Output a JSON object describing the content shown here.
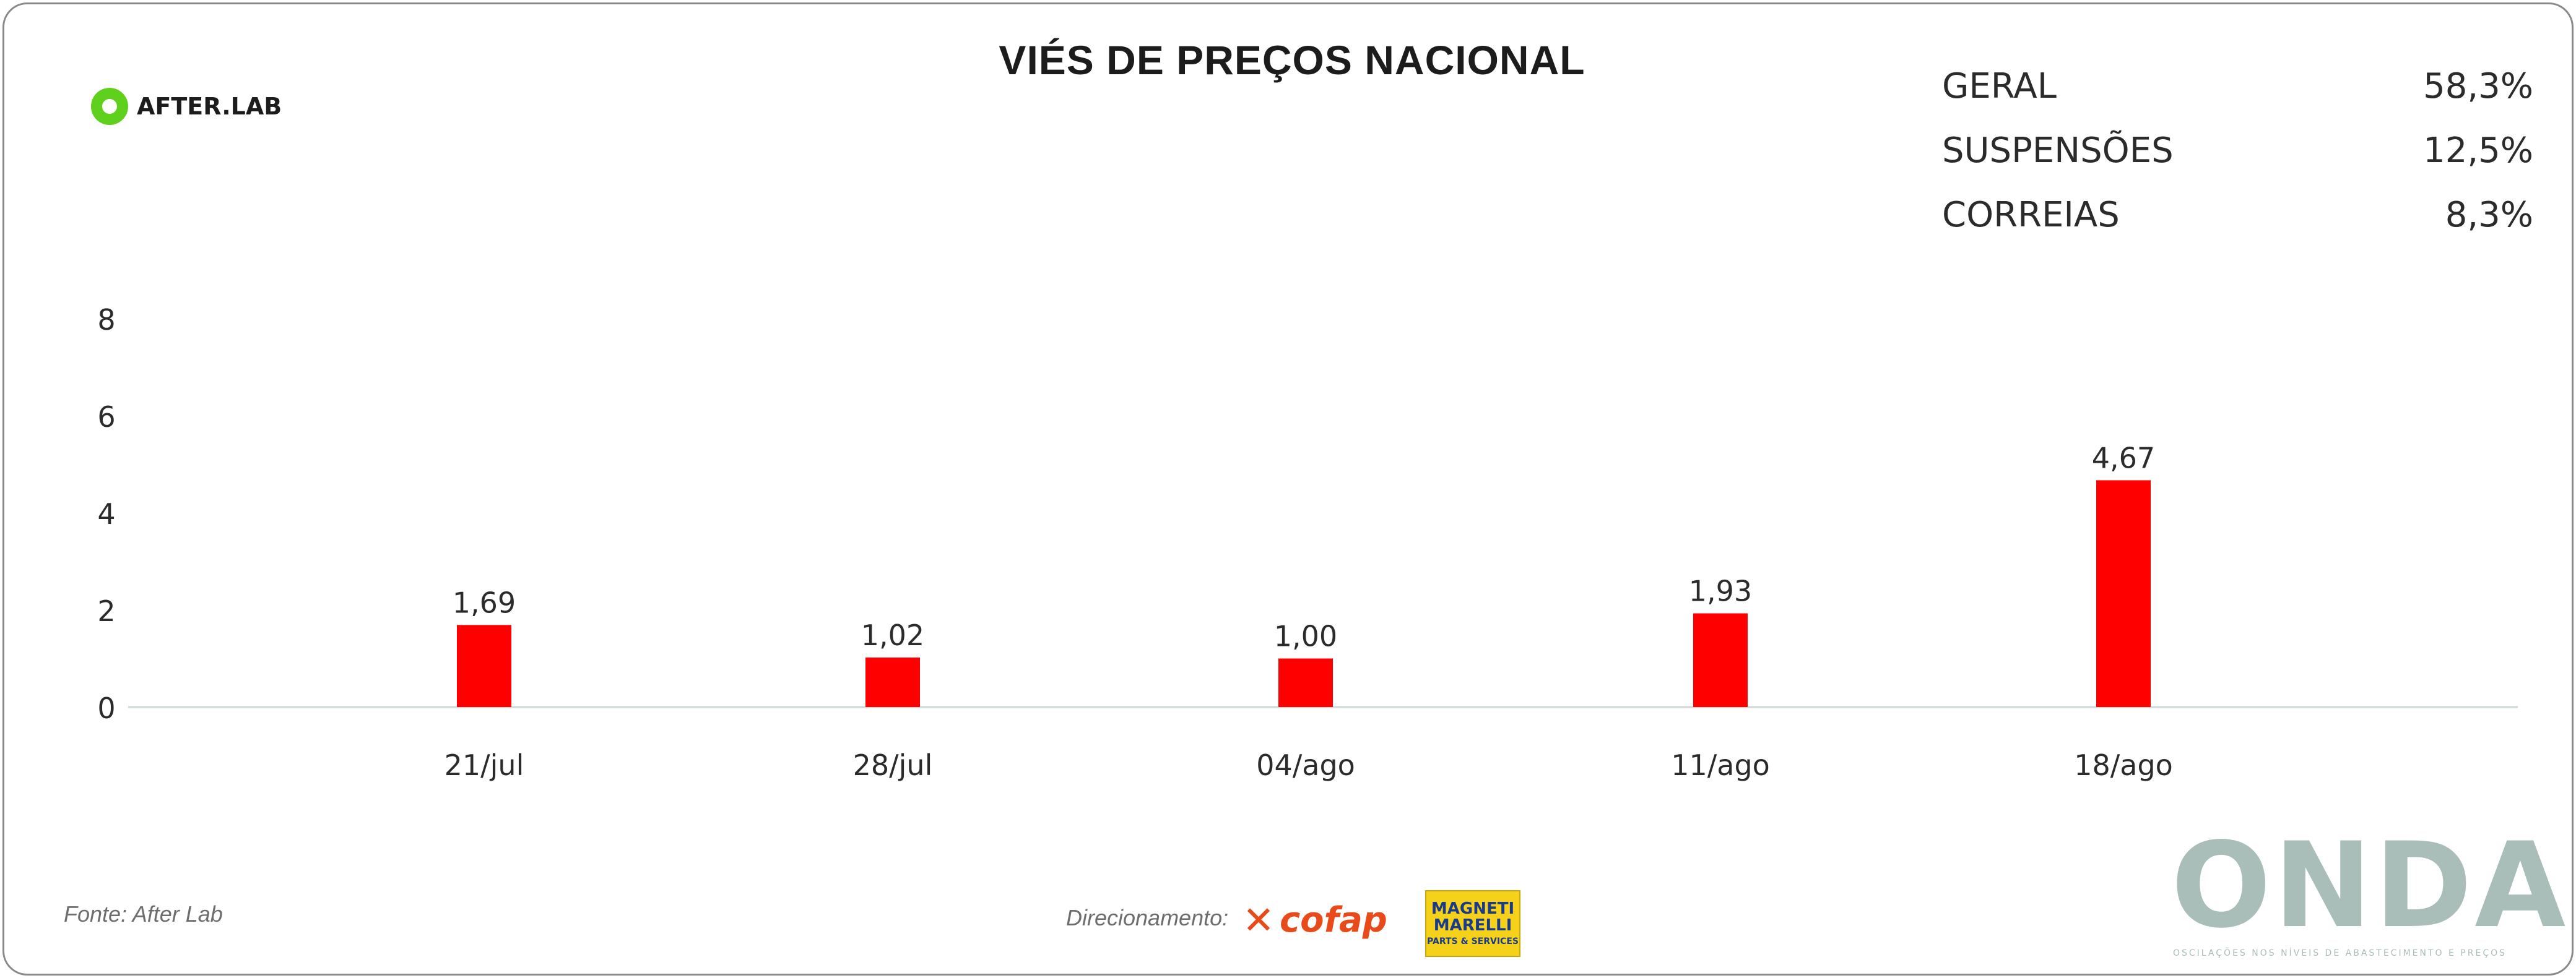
{
  "title": "VIÉS DE PREÇOS NACIONAL",
  "brand": {
    "logo_text": "AFTER.LAB"
  },
  "stats": [
    {
      "label": "GERAL",
      "value": "58,3%"
    },
    {
      "label": "SUSPENSÕES",
      "value": "12,5%"
    },
    {
      "label": "CORREIAS",
      "value": "8,3%"
    }
  ],
  "chart_data": {
    "type": "bar",
    "categories": [
      "21/jul",
      "28/jul",
      "04/ago",
      "11/ago",
      "18/ago"
    ],
    "values": [
      1.69,
      1.02,
      1.0,
      1.93,
      4.67
    ],
    "value_labels": [
      "1,69",
      "1,02",
      "1,00",
      "1,93",
      "4,67"
    ],
    "yticks": [
      0,
      2,
      4,
      6,
      8
    ],
    "ylim": [
      0,
      8
    ],
    "bar_color": "#ff0000",
    "axis_color": "#cfd7d9",
    "grid": false,
    "legend": "none"
  },
  "footer": {
    "source": "Fonte: After Lab",
    "direction": "Direcionamento:",
    "cofap_logo": "cofap",
    "magneti_logo_line1": "MAGNETI MARELLI",
    "magneti_logo_line2": "PARTS & SERVICES",
    "onda_logo": "ONDA",
    "onda_tagline": "OSCILAÇÕES NOS NÍVEIS DE ABASTECIMENTO E PREÇOS"
  },
  "colors": {
    "accent": "#ff0000",
    "onda": "#a9bdb9",
    "logo_green": "#5fd01c"
  }
}
